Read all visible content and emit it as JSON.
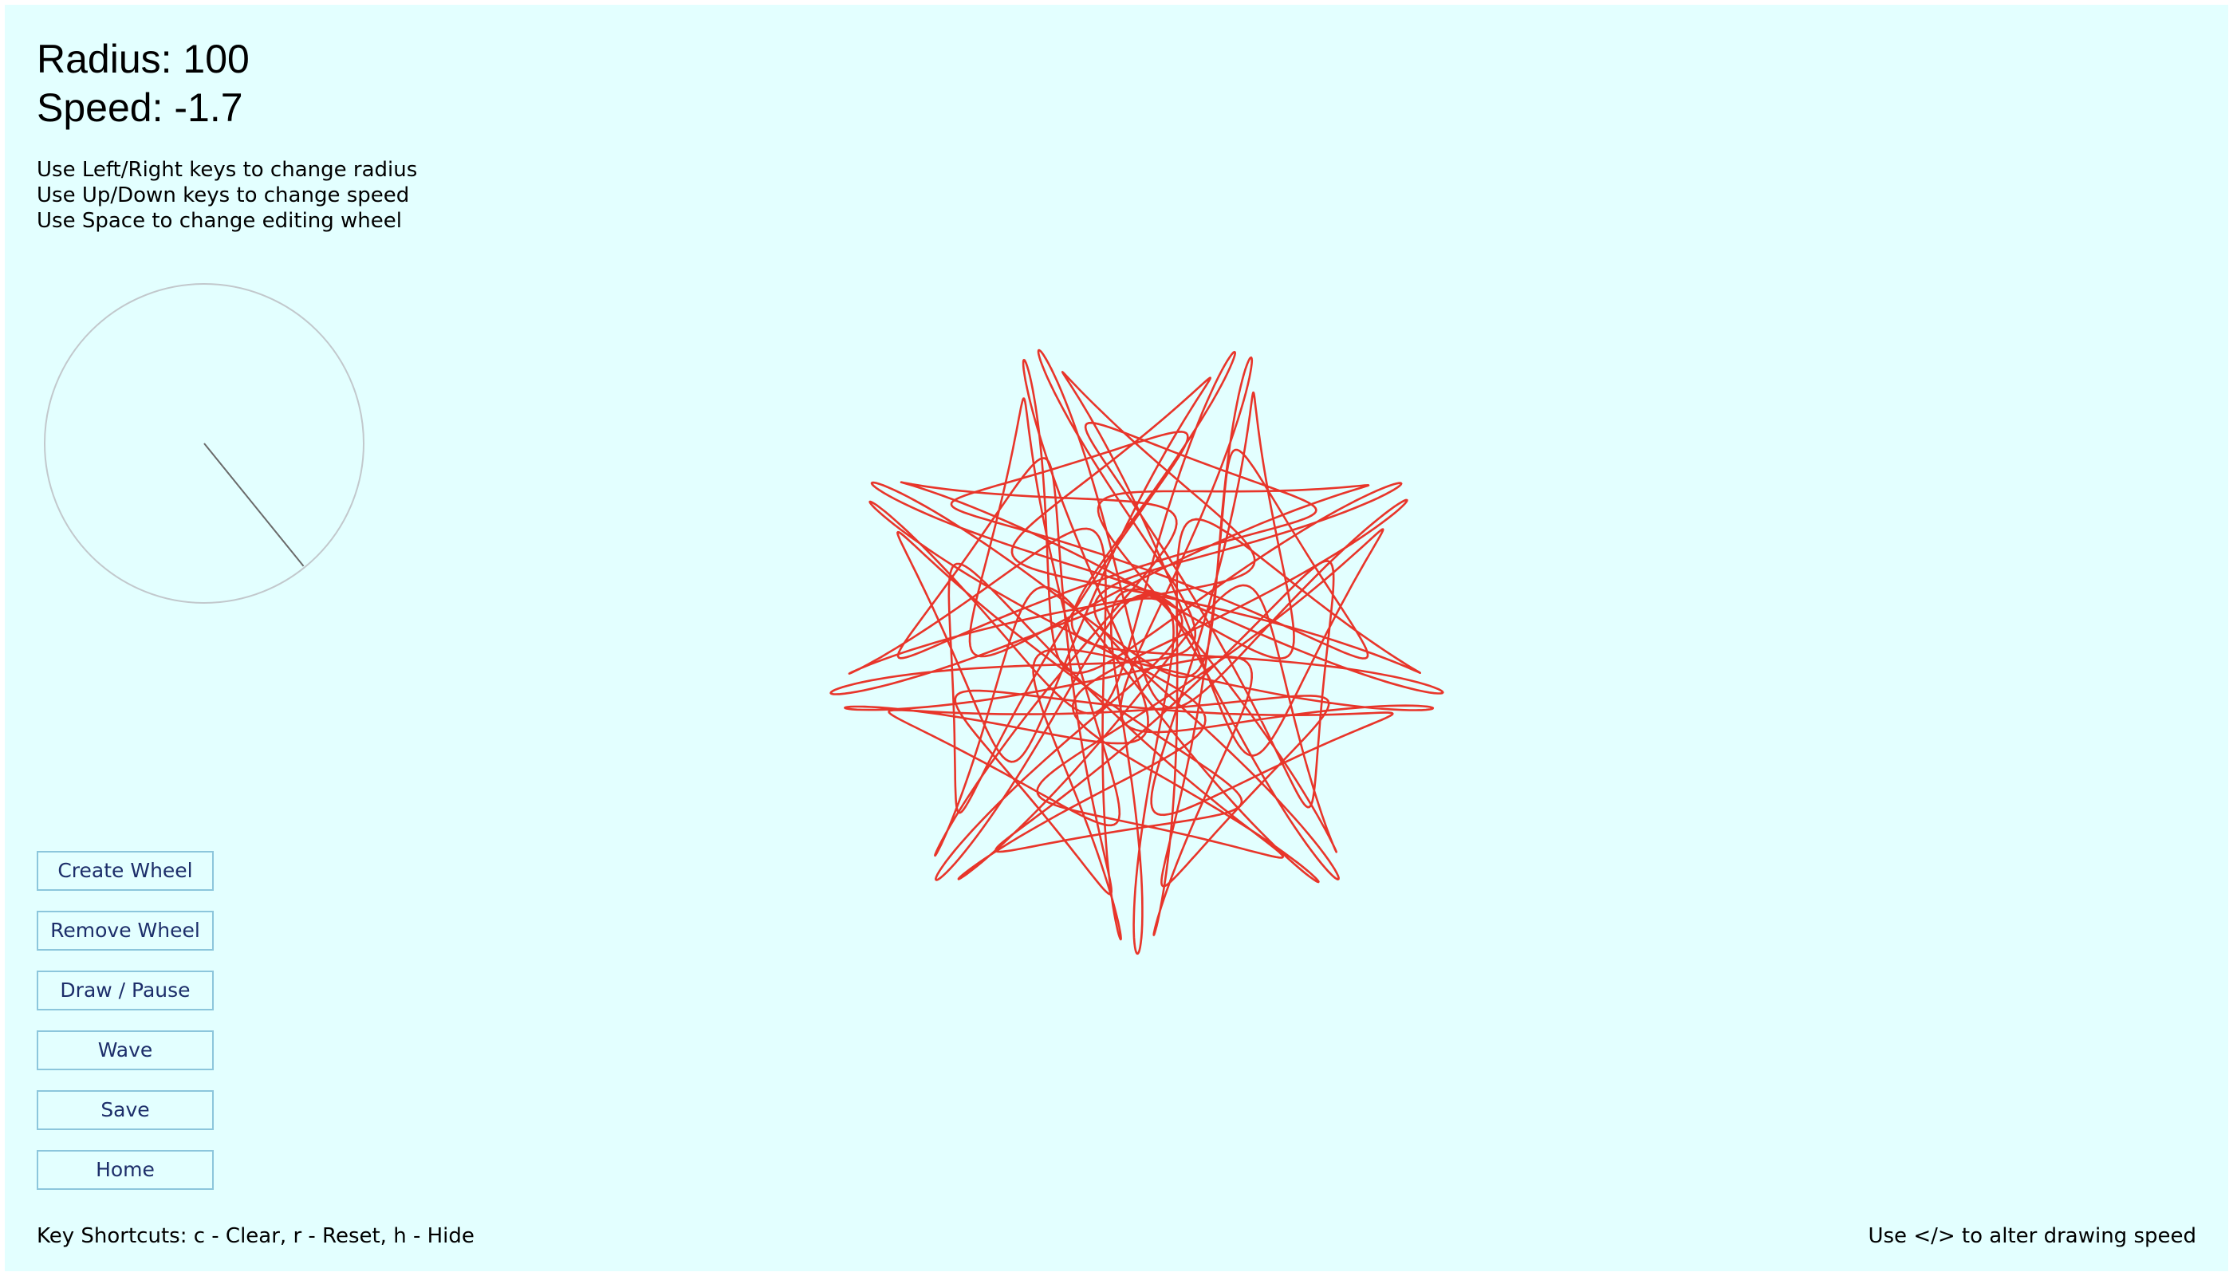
{
  "readouts": {
    "radius": "Radius: 100",
    "speed": "Speed: -1.7"
  },
  "instructions": [
    "Use Left/Right keys to change radius",
    "Use Up/Down keys to change speed",
    "Use Space to change editing wheel"
  ],
  "buttons": {
    "create_wheel": "Create Wheel",
    "remove_wheel": "Remove Wheel",
    "draw_pause": "Draw / Pause",
    "wave": "Wave",
    "save": "Save",
    "home": "Home"
  },
  "footer": {
    "shortcuts": "Key Shortcuts: c - Clear, r - Reset, h - Hide",
    "speed_hint": "Use </> to alter drawing speed"
  },
  "colors": {
    "background": "#e3ffff",
    "trace": "#e8352a",
    "button_border": "#8cc6dc",
    "button_text": "#1d2e6a",
    "wheel_outline": "#c2c8cc",
    "wheel_arm": "#6a6a6a"
  },
  "wheel_preview": {
    "arm_angle_degrees": 51
  }
}
